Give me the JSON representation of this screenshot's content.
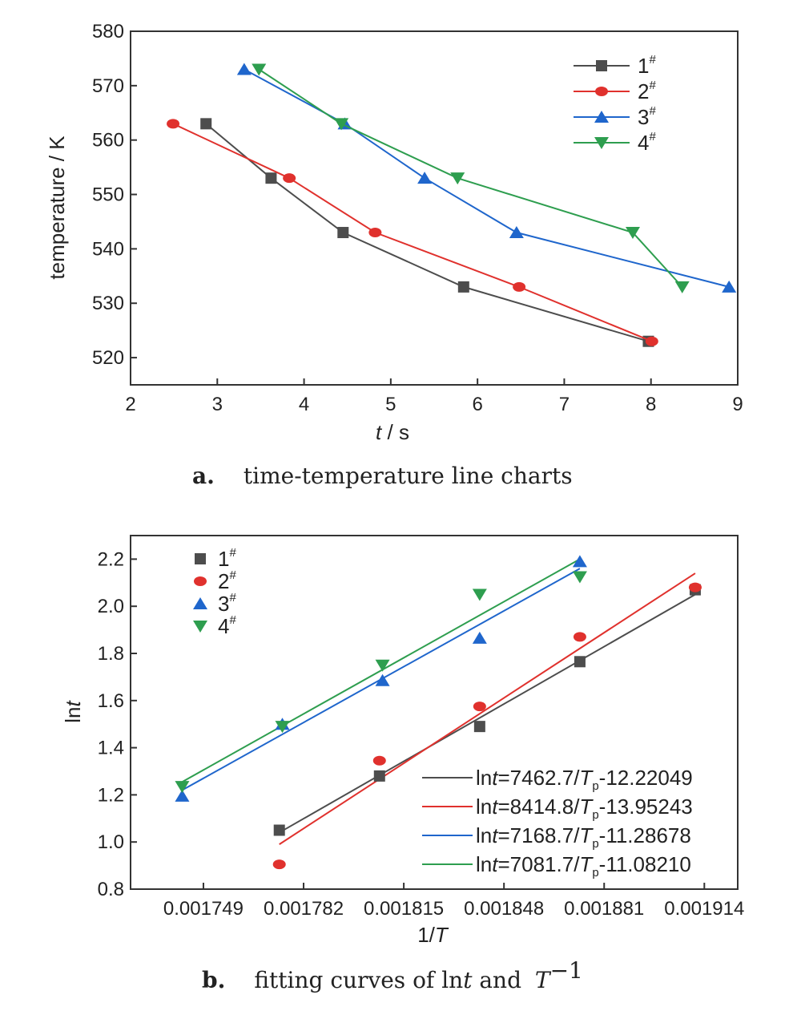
{
  "chart_data": [
    {
      "type": "line",
      "caption": {
        "letter": "a.",
        "text": "time-temperature line charts"
      },
      "xlabel": {
        "italic": "t",
        "rest": " / s"
      },
      "ylabel": "temperature / K",
      "xlim": [
        2,
        9
      ],
      "ylim": [
        515,
        580
      ],
      "xticks": [
        "2",
        "3",
        "4",
        "5",
        "6",
        "7",
        "8",
        "9"
      ],
      "yticks": [
        "520",
        "530",
        "540",
        "550",
        "560",
        "570",
        "580"
      ],
      "legend_position": "top-right",
      "series": [
        {
          "name": "1",
          "sup": "#",
          "color": "#4d4d4d",
          "marker": "square",
          "x": [
            2.87,
            3.62,
            4.45,
            5.84,
            7.97
          ],
          "y": [
            563,
            553,
            543,
            533,
            523
          ]
        },
        {
          "name": "2",
          "sup": "#",
          "color": "#e0312d",
          "marker": "circle",
          "x": [
            2.49,
            3.83,
            4.82,
            6.48,
            8.01
          ],
          "y": [
            563,
            553,
            543,
            533,
            523
          ]
        },
        {
          "name": "3",
          "sup": "#",
          "color": "#1f66cc",
          "marker": "triangle-up",
          "x": [
            3.31,
            4.47,
            5.39,
            6.45,
            8.9
          ],
          "y": [
            573,
            563,
            553,
            543,
            533
          ]
        },
        {
          "name": "4",
          "sup": "#",
          "color": "#2e9e4f",
          "marker": "triangle-down",
          "x": [
            3.48,
            4.43,
            5.77,
            7.79,
            8.36
          ],
          "y": [
            573,
            563,
            553,
            543,
            533
          ]
        }
      ]
    },
    {
      "type": "scatter",
      "caption": {
        "letter": "b.",
        "text_before": "fitting curves of ln",
        "text_italic": "t",
        "text_after": " and ",
        "T": "T",
        "sup": "−1"
      },
      "xlabel": {
        "rest": "1/",
        "italic": "T"
      },
      "ylabel": {
        "rest": "ln",
        "italic": "t"
      },
      "xlim": [
        0.001725,
        0.001925
      ],
      "ylim": [
        0.8,
        2.3
      ],
      "xticks": [
        "0.001749",
        "0.001782",
        "0.001815",
        "0.001848",
        "0.001881",
        "0.001914"
      ],
      "yticks": [
        "0.8",
        "1.0",
        "1.2",
        "1.4",
        "1.6",
        "1.8",
        "2.0",
        "2.2"
      ],
      "legend_position": "top-left",
      "series": [
        {
          "name": "1",
          "sup": "#",
          "color": "#4d4d4d",
          "marker": "square",
          "x": [
            0.001774,
            0.001807,
            0.00184,
            0.001873,
            0.001911
          ],
          "y": [
            1.05,
            1.28,
            1.49,
            1.765,
            2.07
          ]
        },
        {
          "name": "2",
          "sup": "#",
          "color": "#e0312d",
          "marker": "circle",
          "x": [
            0.001774,
            0.001807,
            0.00184,
            0.001873,
            0.001911
          ],
          "y": [
            0.905,
            1.345,
            1.575,
            1.87,
            2.08
          ]
        },
        {
          "name": "3",
          "sup": "#",
          "color": "#1f66cc",
          "marker": "triangle-up",
          "x": [
            0.001742,
            0.001775,
            0.001808,
            0.00184,
            0.001873
          ],
          "y": [
            1.195,
            1.5,
            1.685,
            1.865,
            2.19
          ]
        },
        {
          "name": "4",
          "sup": "#",
          "color": "#2e9e4f",
          "marker": "triangle-down",
          "x": [
            0.001742,
            0.001775,
            0.001808,
            0.00184,
            0.001873
          ],
          "y": [
            1.235,
            1.49,
            1.75,
            2.05,
            2.125
          ]
        }
      ],
      "fits": [
        {
          "color": "#4d4d4d",
          "x": [
            0.001774,
            0.001911
          ],
          "y": [
            1.04,
            2.05
          ],
          "label": {
            "pre": "ln",
            "t": "t",
            "mid": "=7462.7/",
            "T": "T",
            "sub": "p",
            "post": "-12.22049"
          }
        },
        {
          "color": "#e0312d",
          "x": [
            0.001774,
            0.001911
          ],
          "y": [
            0.99,
            2.14
          ],
          "label": {
            "pre": "ln",
            "t": "t",
            "mid": "=8414.8/",
            "T": "T",
            "sub": "p",
            "post": "-13.95243"
          }
        },
        {
          "color": "#1f66cc",
          "x": [
            0.001742,
            0.001873
          ],
          "y": [
            1.22,
            2.16
          ],
          "label": {
            "pre": "ln",
            "t": "t",
            "mid": "=7168.7/",
            "T": "T",
            "sub": "p",
            "post": "-11.28678"
          }
        },
        {
          "color": "#2e9e4f",
          "x": [
            0.001742,
            0.001873
          ],
          "y": [
            1.255,
            2.2
          ],
          "label": {
            "pre": "ln",
            "t": "t",
            "mid": "=7081.7/",
            "T": "T",
            "sub": "p",
            "post": "-11.08210"
          }
        }
      ]
    }
  ]
}
